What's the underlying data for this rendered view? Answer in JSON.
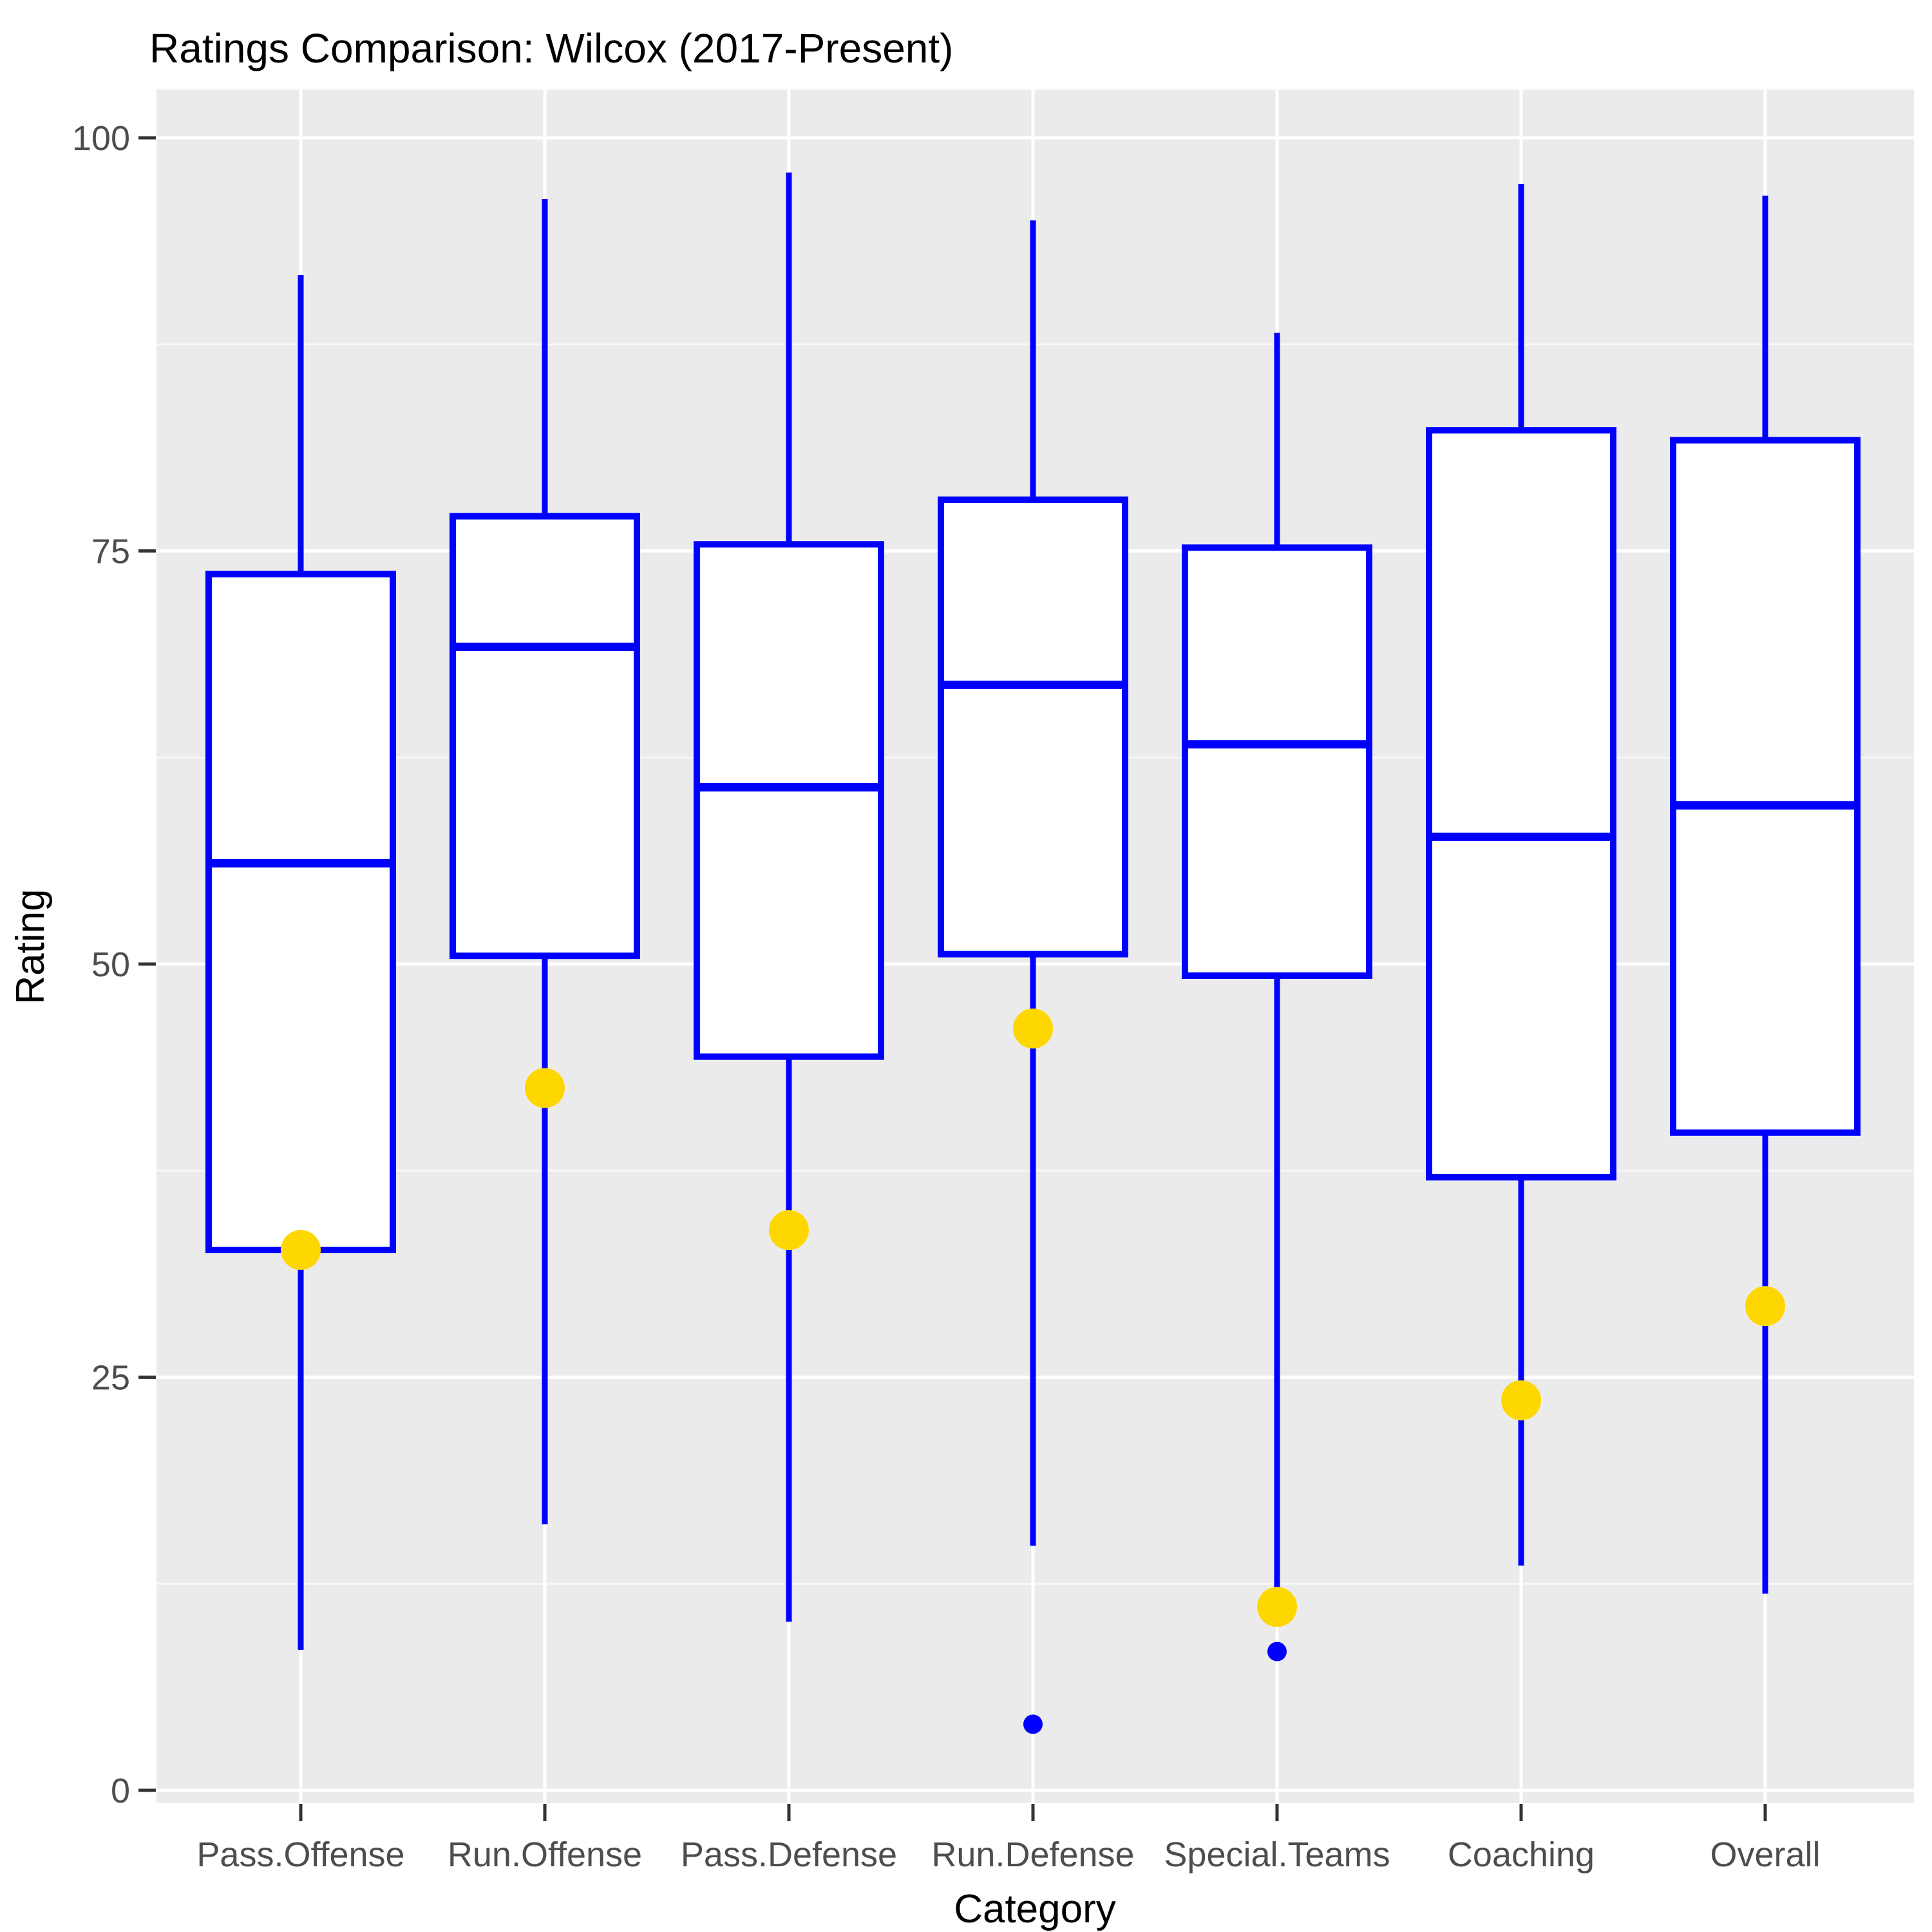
{
  "title": "Ratings Comparison: Wilcox (2017-Present)",
  "chart_data": {
    "type": "boxplot",
    "title": "Ratings Comparison: Wilcox (2017-Present)",
    "xlabel": "Category",
    "ylabel": "Rating",
    "ylim": [
      0,
      100
    ],
    "yticks": [
      0,
      25,
      50,
      75,
      100
    ],
    "yticks_minor": [
      12.5,
      37.5,
      62.5,
      87.5
    ],
    "grid": true,
    "legend_position": "none",
    "categories": [
      "Pass.Offense",
      "Run.Offense",
      "Pass.Defense",
      "Run.Defense",
      "Special.Teams",
      "Coaching",
      "Overall"
    ],
    "boxes": [
      {
        "category": "Pass.Offense",
        "whisker_low": 8.5,
        "q1": 32.7,
        "median": 56.1,
        "q3": 73.6,
        "whisker_high": 91.7,
        "point": 32.7,
        "outliers": []
      },
      {
        "category": "Run.Offense",
        "whisker_low": 16.1,
        "q1": 50.5,
        "median": 69.2,
        "q3": 77.1,
        "whisker_high": 96.3,
        "point": 42.5,
        "outliers": []
      },
      {
        "category": "Pass.Defense",
        "whisker_low": 10.2,
        "q1": 44.4,
        "median": 60.7,
        "q3": 75.4,
        "whisker_high": 97.9,
        "point": 33.9,
        "outliers": []
      },
      {
        "category": "Run.Defense",
        "whisker_low": 14.8,
        "q1": 50.6,
        "median": 66.9,
        "q3": 78.1,
        "whisker_high": 95.0,
        "point": 46.1,
        "outliers": [
          4.0
        ]
      },
      {
        "category": "Special.Teams",
        "whisker_low": 12.3,
        "q1": 49.3,
        "median": 63.3,
        "q3": 75.2,
        "whisker_high": 88.2,
        "point": 11.1,
        "outliers": [
          8.4
        ]
      },
      {
        "category": "Coaching",
        "whisker_low": 13.6,
        "q1": 37.1,
        "median": 57.7,
        "q3": 82.3,
        "whisker_high": 97.2,
        "point": 23.6,
        "outliers": []
      },
      {
        "category": "Overall",
        "whisker_low": 11.9,
        "q1": 39.8,
        "median": 59.6,
        "q3": 81.7,
        "whisker_high": 96.5,
        "point": 29.3,
        "outliers": []
      }
    ],
    "colors": {
      "box_stroke": "#0000FF",
      "box_fill": "#FFFFFF",
      "median": "#0000FF",
      "whisker": "#0000FF",
      "point": "#FFD700",
      "outlier": "#0000FF",
      "panel_bg": "#EBEBEB",
      "grid_major": "#FFFFFF",
      "grid_minor": "#F7F7F7",
      "tick_mark": "#333333",
      "tick_text": "#4D4D4D",
      "title_text": "#000000"
    }
  }
}
